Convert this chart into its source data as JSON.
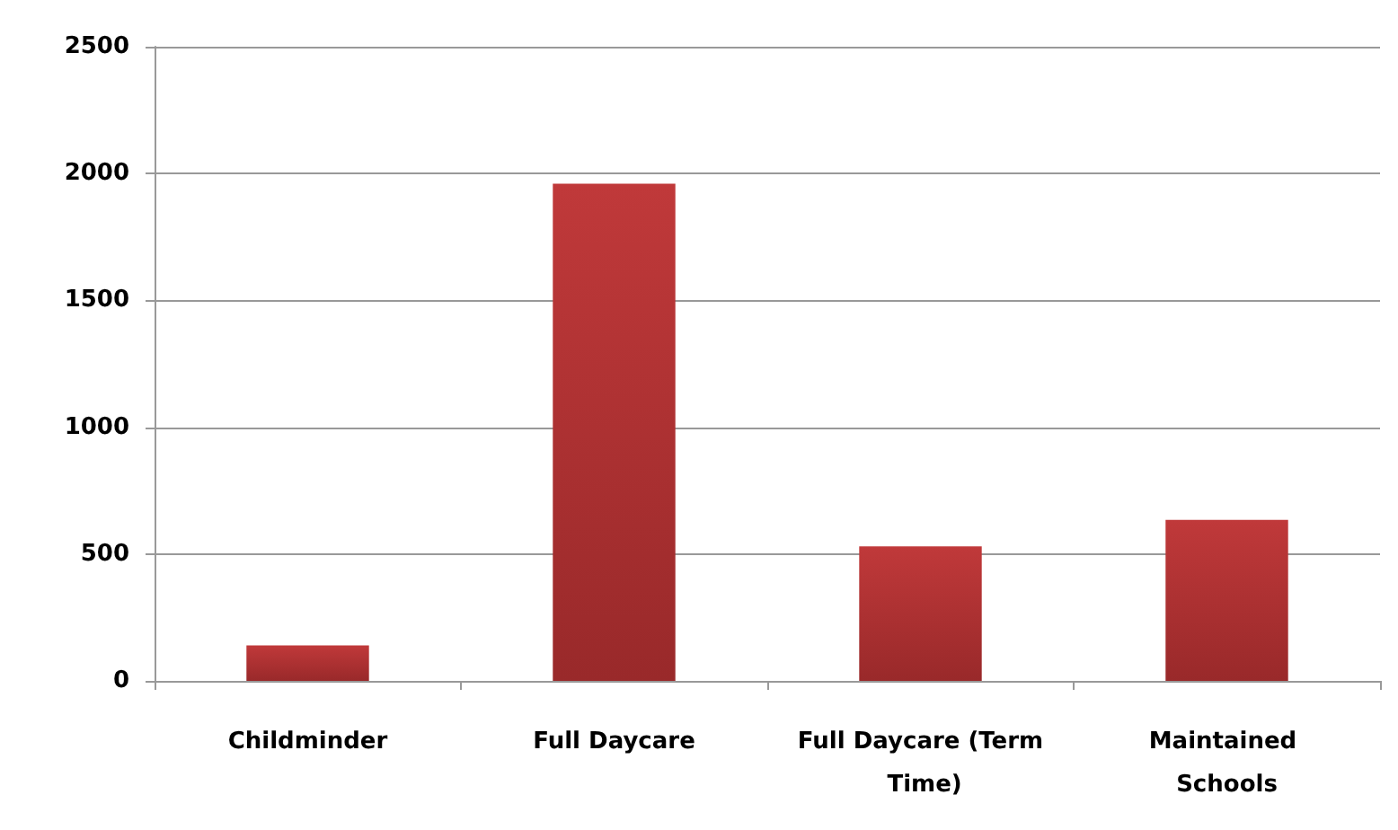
{
  "chart_data": {
    "type": "bar",
    "categories": [
      "Childminder",
      "Full Daycare",
      "Full Daycare (Term Time)",
      "Maintained Schools"
    ],
    "values": [
      140,
      1960,
      530,
      635
    ],
    "color": "#c0393a",
    "ylim": [
      0,
      2500
    ],
    "yticks": [
      0,
      500,
      1000,
      1500,
      2000,
      2500
    ],
    "grid": "y"
  }
}
